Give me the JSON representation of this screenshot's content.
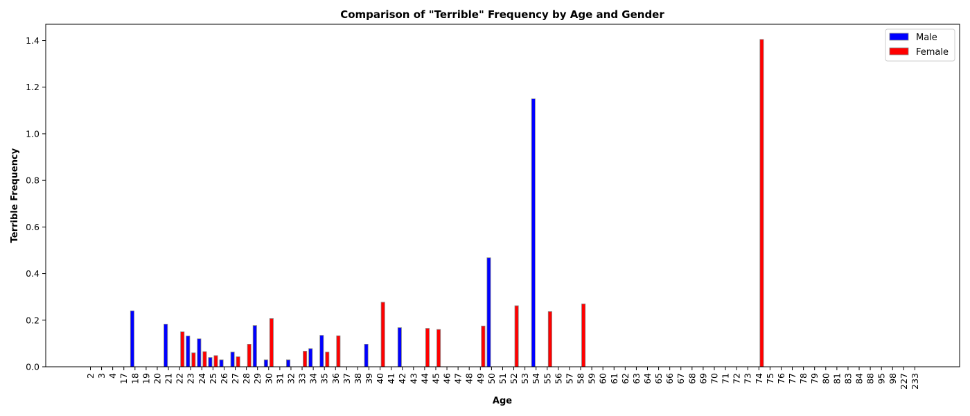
{
  "chart_data": {
    "type": "bar",
    "title": "Comparison of \"Terrible\" Frequency by Age and Gender",
    "xlabel": "Age",
    "ylabel": "Terrible Frequency",
    "ylim": [
      0,
      1.47
    ],
    "yticks": [
      "0.0",
      "0.2",
      "0.4",
      "0.6",
      "0.8",
      "1.0",
      "1.2",
      "1.4"
    ],
    "legend_position": "top-right",
    "categories": [
      "2",
      "3",
      "4",
      "17",
      "18",
      "19",
      "20",
      "21",
      "22",
      "23",
      "24",
      "25",
      "26",
      "27",
      "28",
      "29",
      "30",
      "31",
      "32",
      "33",
      "34",
      "35",
      "36",
      "37",
      "38",
      "39",
      "40",
      "41",
      "42",
      "43",
      "44",
      "45",
      "46",
      "47",
      "48",
      "49",
      "50",
      "51",
      "52",
      "53",
      "54",
      "55",
      "56",
      "57",
      "58",
      "59",
      "60",
      "61",
      "62",
      "63",
      "64",
      "65",
      "66",
      "67",
      "68",
      "69",
      "70",
      "71",
      "72",
      "73",
      "74",
      "75",
      "76",
      "77",
      "78",
      "79",
      "80",
      "81",
      "83",
      "84",
      "88",
      "95",
      "98",
      "227",
      "233"
    ],
    "series": [
      {
        "name": "Male",
        "color": "#0000ff",
        "values": [
          0,
          0,
          0,
          0,
          0.24,
          0,
          0,
          0.183,
          0,
          0.132,
          0.12,
          0.04,
          0.03,
          0.063,
          0,
          0.177,
          0.03,
          0,
          0.03,
          0,
          0.078,
          0.135,
          0,
          0,
          0,
          0.097,
          0,
          0,
          0.168,
          0,
          0,
          0,
          0,
          0,
          0,
          0,
          0.468,
          0,
          0,
          0,
          1.15,
          0,
          0,
          0,
          0,
          0,
          0,
          0,
          0,
          0,
          0,
          0,
          0,
          0,
          0,
          0,
          0,
          0,
          0,
          0,
          0,
          0,
          0,
          0,
          0,
          0,
          0,
          0,
          0,
          0,
          0,
          0,
          0,
          0,
          0
        ]
      },
      {
        "name": "Female",
        "color": "#ff0000",
        "values": [
          0,
          0,
          0,
          0,
          0,
          0,
          0,
          0,
          0.15,
          0.06,
          0.065,
          0.048,
          0,
          0.043,
          0.097,
          0,
          0.207,
          0,
          0,
          0.067,
          0,
          0.063,
          0.133,
          0,
          0,
          0,
          0.277,
          0,
          0,
          0,
          0.165,
          0.16,
          0,
          0,
          0,
          0.175,
          0,
          0,
          0.262,
          0,
          0,
          0.237,
          0,
          0,
          0.27,
          0,
          0,
          0,
          0,
          0,
          0,
          0,
          0,
          0,
          0,
          0,
          0,
          0,
          0,
          0,
          1.405,
          0,
          0,
          0,
          0,
          0,
          0,
          0,
          0,
          0,
          0,
          0,
          0,
          0,
          0
        ]
      }
    ]
  }
}
